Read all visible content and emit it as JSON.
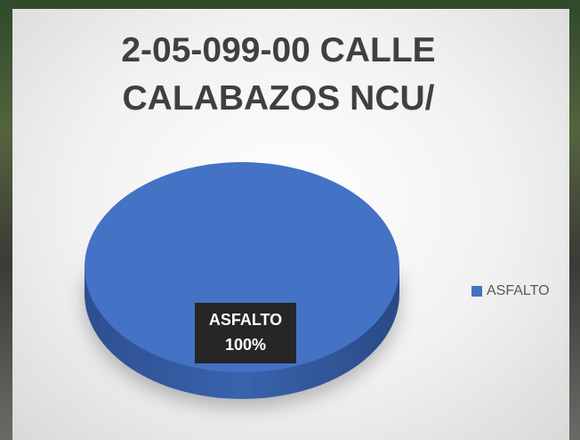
{
  "chart_data": {
    "type": "pie",
    "title": "2-05-099-00 CALLE CALABAZOS NCU/",
    "categories": [
      "ASFALTO"
    ],
    "values": [
      100
    ],
    "value_labels": [
      "100%"
    ],
    "colors": [
      "#4472c4"
    ],
    "legend": "right"
  }
}
